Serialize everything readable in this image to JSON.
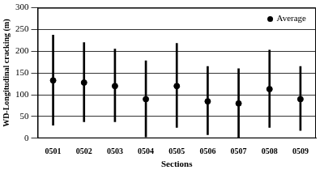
{
  "chart_data": {
    "type": "scatter",
    "x_label": "Sections",
    "y_label": "WD-Longitudinal cracking (m)",
    "categories": [
      "0501",
      "0502",
      "0503",
      "0504",
      "0505",
      "0506",
      "0507",
      "0508",
      "0509"
    ],
    "series": [
      {
        "name": "Average",
        "color": "#000000",
        "marker": "circle",
        "values": [
          133,
          128,
          120,
          90,
          120,
          85,
          80,
          113,
          90
        ],
        "low": [
          30,
          38,
          38,
          3,
          25,
          8,
          0,
          25,
          18
        ],
        "high": [
          237,
          220,
          205,
          178,
          218,
          165,
          160,
          203,
          165
        ]
      }
    ],
    "ylim": [
      0,
      300
    ],
    "yticks": [
      0,
      50,
      100,
      150,
      200,
      250,
      300
    ],
    "grid": true,
    "legend": "upper right"
  }
}
